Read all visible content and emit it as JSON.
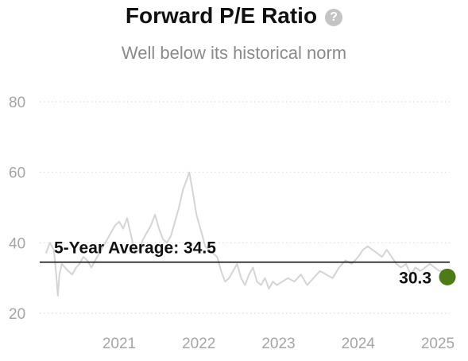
{
  "header": {
    "title": "Forward P/E Ratio",
    "help_icon": "question-circle-icon",
    "help_glyph": "?",
    "subtitle": "Well below its historical norm"
  },
  "chart_data": {
    "type": "line",
    "title": "Forward P/E Ratio",
    "subtitle": "Well below its historical norm",
    "xlabel": "",
    "ylabel": "",
    "xlim": [
      2020.0,
      2025.2
    ],
    "ylim": [
      20,
      80
    ],
    "yticks": [
      20,
      40,
      60,
      80
    ],
    "xticks": [
      2021,
      2022,
      2023,
      2024,
      2025
    ],
    "grid": true,
    "series": [
      {
        "color": "#d4d4d4",
        "x": [
          2020.08,
          2020.13,
          2020.18,
          2020.21,
          2020.23,
          2020.25,
          2020.28,
          2020.32,
          2020.36,
          2020.41,
          2020.46,
          2020.5,
          2020.55,
          2020.6,
          2020.65,
          2020.7,
          2020.75,
          2020.8,
          2020.85,
          2020.9,
          2020.95,
          2021.0,
          2021.05,
          2021.1,
          2021.15,
          2021.2,
          2021.25,
          2021.3,
          2021.35,
          2021.4,
          2021.45,
          2021.5,
          2021.55,
          2021.6,
          2021.65,
          2021.7,
          2021.75,
          2021.8,
          2021.85,
          2021.88,
          2021.92,
          2021.97,
          2022.02,
          2022.08,
          2022.13,
          2022.18,
          2022.23,
          2022.28,
          2022.33,
          2022.38,
          2022.43,
          2022.48,
          2022.53,
          2022.58,
          2022.63,
          2022.68,
          2022.73,
          2022.78,
          2022.83,
          2022.88,
          2022.93,
          2022.98,
          2023.05,
          2023.12,
          2023.2,
          2023.28,
          2023.36,
          2023.44,
          2023.52,
          2023.6,
          2023.68,
          2023.76,
          2023.84,
          2023.92,
          2024.0,
          2024.06,
          2024.12,
          2024.18,
          2024.24,
          2024.3,
          2024.36,
          2024.42,
          2024.48,
          2024.54,
          2024.6,
          2024.66,
          2024.72,
          2024.78,
          2024.84,
          2024.9,
          2024.96,
          2025.02,
          2025.08
        ],
        "y": [
          37,
          40,
          38,
          31,
          25,
          31,
          34,
          33,
          32,
          31,
          33,
          34,
          36,
          35,
          33,
          35,
          37,
          39,
          41,
          43,
          45,
          46,
          44,
          47,
          42,
          37,
          38,
          41,
          43,
          45,
          48,
          44,
          41,
          40,
          42,
          46,
          50,
          55,
          58,
          60,
          55,
          48,
          44,
          39,
          38,
          37,
          36,
          32,
          29,
          30,
          32,
          34,
          30,
          28,
          31,
          33,
          29,
          28,
          30,
          27,
          29,
          28,
          29,
          30,
          29,
          31,
          28,
          30,
          32,
          31,
          30,
          33,
          35,
          34,
          36,
          38,
          39,
          38,
          37,
          36,
          38,
          36,
          34,
          33,
          34,
          31,
          33,
          32,
          33,
          34,
          33,
          32,
          32
        ]
      }
    ],
    "reference_line": {
      "label": "5-Year Average: 34.5",
      "value": 34.5,
      "color": "#111111"
    },
    "current_point": {
      "label": "30.3",
      "x": 2025.12,
      "y": 30.3,
      "color": "#4d7c17"
    }
  }
}
